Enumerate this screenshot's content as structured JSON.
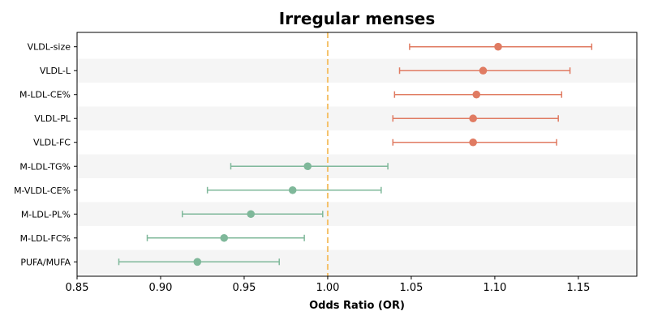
{
  "chart_data": {
    "type": "forest",
    "title": "Irregular menses",
    "xlabel": "Odds Ratio (OR)",
    "ylabel": "",
    "xlim": [
      0.85,
      1.185
    ],
    "xticks": [
      0.85,
      0.9,
      0.95,
      1.0,
      1.05,
      1.1,
      1.15
    ],
    "xtick_labels": [
      "0.85",
      "0.90",
      "0.95",
      "1.00",
      "1.05",
      "1.10",
      "1.15"
    ],
    "reference_line": 1.0,
    "colors": {
      "positive": "#e07b62",
      "negative": "#7fb89a",
      "reference": "#f5c26b",
      "band": "#f5f5f5"
    },
    "rows": [
      {
        "label": "VLDL-size",
        "or": 1.102,
        "lo": 1.049,
        "hi": 1.158
      },
      {
        "label": "VLDL-L",
        "or": 1.093,
        "lo": 1.043,
        "hi": 1.145
      },
      {
        "label": "M-LDL-CE%",
        "or": 1.089,
        "lo": 1.04,
        "hi": 1.14
      },
      {
        "label": "VLDL-PL",
        "or": 1.087,
        "lo": 1.039,
        "hi": 1.138
      },
      {
        "label": "VLDL-FC",
        "or": 1.087,
        "lo": 1.039,
        "hi": 1.137
      },
      {
        "label": "M-LDL-TG%",
        "or": 0.988,
        "lo": 0.942,
        "hi": 1.036
      },
      {
        "label": "M-VLDL-CE%",
        "or": 0.979,
        "lo": 0.928,
        "hi": 1.032
      },
      {
        "label": "M-LDL-PL%",
        "or": 0.954,
        "lo": 0.913,
        "hi": 0.997
      },
      {
        "label": "M-LDL-FC%",
        "or": 0.938,
        "lo": 0.892,
        "hi": 0.986
      },
      {
        "label": "PUFA/MUFA",
        "or": 0.922,
        "lo": 0.875,
        "hi": 0.971
      }
    ]
  }
}
